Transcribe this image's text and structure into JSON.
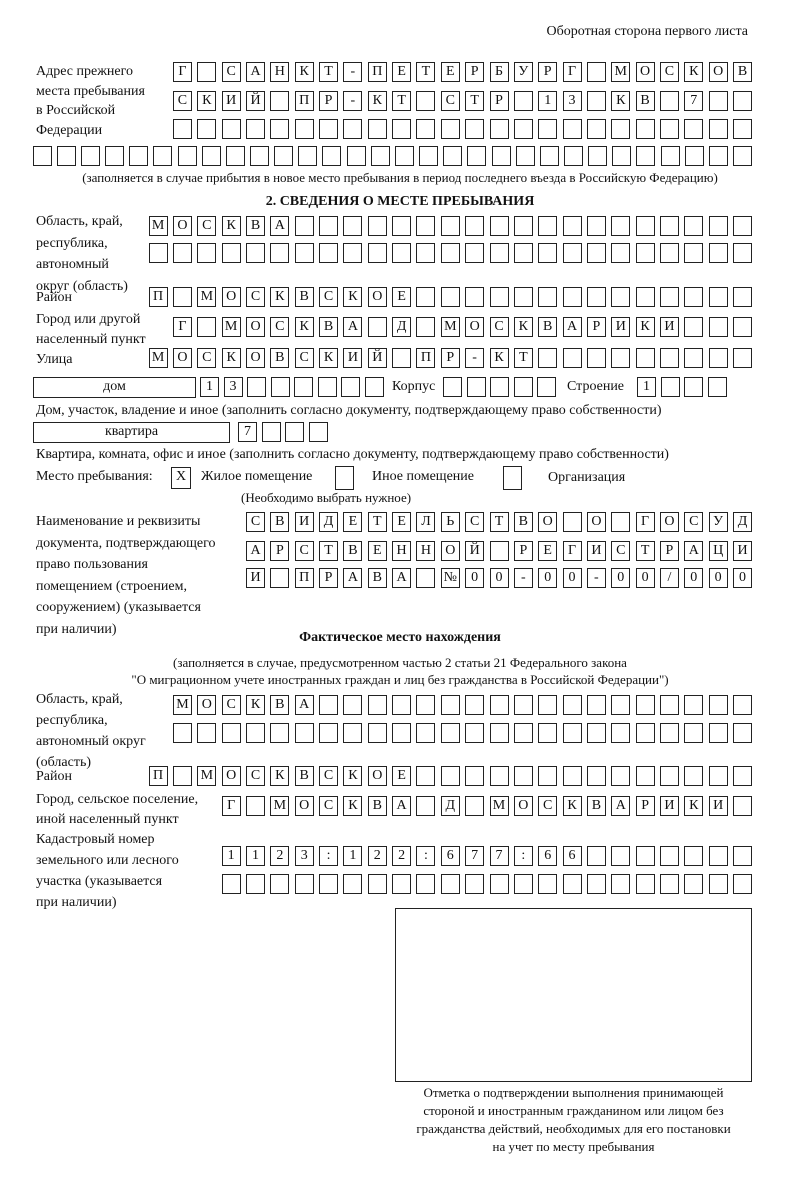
{
  "header": "Оборотная сторона первого листа",
  "prev_address": {
    "label": [
      "Адрес прежнего",
      "места пребывания",
      "в Российской",
      "Федерации"
    ],
    "rows": [
      [
        "Г",
        "",
        "С",
        "А",
        "Н",
        "К",
        "Т",
        "-",
        "П",
        "Е",
        "Т",
        "Е",
        "Р",
        "Б",
        "У",
        "Р",
        "Г",
        "",
        "М",
        "О",
        "С",
        "К",
        "О",
        "В"
      ],
      [
        "С",
        "К",
        "И",
        "Й",
        "",
        "П",
        "Р",
        "-",
        "К",
        "Т",
        "",
        "С",
        "Т",
        "Р",
        "",
        "1",
        "3",
        "",
        "К",
        "В",
        "",
        "7",
        "",
        ""
      ],
      [
        "",
        "",
        "",
        "",
        "",
        "",
        "",
        "",
        "",
        "",
        "",
        "",
        "",
        "",
        "",
        "",
        "",
        "",
        "",
        "",
        "",
        "",
        "",
        ""
      ],
      [
        "",
        "",
        "",
        "",
        "",
        "",
        "",
        "",
        "",
        "",
        "",
        "",
        "",
        "",
        "",
        "",
        "",
        "",
        "",
        "",
        "",
        "",
        "",
        "",
        "",
        "",
        "",
        "",
        "",
        ""
      ]
    ],
    "note": "(заполняется в случае прибытия в новое место пребывания в период последнего въезда в Российскую Федерацию)"
  },
  "section2": {
    "title": "2. СВЕДЕНИЯ О МЕСТЕ ПРЕБЫВАНИЯ",
    "region_label": [
      "Область, край,",
      "республика,",
      "автономный",
      "округ (область)"
    ],
    "region_rows": [
      [
        "М",
        "О",
        "С",
        "К",
        "В",
        "А",
        "",
        "",
        "",
        "",
        "",
        "",
        "",
        "",
        "",
        "",
        "",
        "",
        "",
        "",
        "",
        "",
        "",
        "",
        ""
      ],
      [
        "",
        "",
        "",
        "",
        "",
        "",
        "",
        "",
        "",
        "",
        "",
        "",
        "",
        "",
        "",
        "",
        "",
        "",
        "",
        "",
        "",
        "",
        "",
        "",
        ""
      ]
    ],
    "district_label": "Район",
    "district_row": [
      "П",
      "",
      "М",
      "О",
      "С",
      "К",
      "В",
      "С",
      "К",
      "О",
      "Е",
      "",
      "",
      "",
      "",
      "",
      "",
      "",
      "",
      "",
      "",
      "",
      "",
      "",
      ""
    ],
    "city_label": [
      "Город или другой",
      "населенный пункт"
    ],
    "city_row": [
      "Г",
      "",
      "М",
      "О",
      "С",
      "К",
      "В",
      "А",
      "",
      "Д",
      "",
      "М",
      "О",
      "С",
      "К",
      "В",
      "А",
      "Р",
      "И",
      "К",
      "И",
      "",
      "",
      ""
    ],
    "street_label": "Улица",
    "street_row": [
      "М",
      "О",
      "С",
      "К",
      "О",
      "В",
      "С",
      "К",
      "И",
      "Й",
      "",
      "П",
      "Р",
      "-",
      "К",
      "Т",
      "",
      "",
      "",
      "",
      "",
      "",
      "",
      "",
      ""
    ],
    "house_type": "дом",
    "house_cells": [
      "1",
      "3",
      "",
      "",
      "",
      "",
      "",
      ""
    ],
    "corpus_label": "Корпус",
    "corpus_cells": [
      "",
      "",
      "",
      "",
      ""
    ],
    "building_label": "Строение",
    "building_cells": [
      "1",
      "",
      "",
      ""
    ],
    "house_note": "Дом, участок, владение и иное (заполнить согласно документу, подтверждающему право собственности)",
    "apt_type": "квартира",
    "apt_cells": [
      "7",
      "",
      "",
      ""
    ],
    "apt_note": "Квартира, комната, офис и иное (заполнить согласно документу, подтверждающему право собственности)",
    "stay_label": "Место пребывания:",
    "stay_options": [
      {
        "mark": "X",
        "label": "Жилое помещение"
      },
      {
        "mark": "",
        "label": "Иное помещение"
      },
      {
        "mark": "",
        "label": "Организация"
      }
    ],
    "stay_note": "(Необходимо выбрать нужное)",
    "doc_label": [
      "Наименование и реквизиты",
      "документа, подтверждающего",
      "право пользования",
      "помещением (строением,",
      "сооружением) (указывается",
      "при наличии)"
    ],
    "doc_rows": [
      [
        "С",
        "В",
        "И",
        "Д",
        "Е",
        "Т",
        "Е",
        "Л",
        "Ь",
        "С",
        "Т",
        "В",
        "О",
        "",
        "О",
        "",
        "Г",
        "О",
        "С",
        "У",
        "Д"
      ],
      [
        "А",
        "Р",
        "С",
        "Т",
        "В",
        "Е",
        "Н",
        "Н",
        "О",
        "Й",
        "",
        "Р",
        "Е",
        "Г",
        "И",
        "С",
        "Т",
        "Р",
        "А",
        "Ц",
        "И"
      ],
      [
        "И",
        "",
        "П",
        "Р",
        "А",
        "В",
        "А",
        "",
        "№",
        "0",
        "0",
        "-",
        "0",
        "0",
        "-",
        "0",
        "0",
        "/",
        "0",
        "0",
        "0"
      ]
    ]
  },
  "actual": {
    "title": "Фактическое место нахождения",
    "note": [
      "(заполняется в случае, предусмотренном частью 2 статьи 21 Федерального закона",
      "\"О миграционном учете иностранных граждан и лиц без гражданства в Российской Федерации\")"
    ],
    "region_label": [
      "Область, край,",
      "республика,",
      "автономный округ",
      "(область)"
    ],
    "region_rows": [
      [
        "М",
        "О",
        "С",
        "К",
        "В",
        "А",
        "",
        "",
        "",
        "",
        "",
        "",
        "",
        "",
        "",
        "",
        "",
        "",
        "",
        "",
        "",
        "",
        "",
        ""
      ],
      [
        "",
        "",
        "",
        "",
        "",
        "",
        "",
        "",
        "",
        "",
        "",
        "",
        "",
        "",
        "",
        "",
        "",
        "",
        "",
        "",
        "",
        "",
        "",
        ""
      ]
    ],
    "district_label": "Район",
    "district_row": [
      "П",
      "",
      "М",
      "О",
      "С",
      "К",
      "В",
      "С",
      "К",
      "О",
      "Е",
      "",
      "",
      "",
      "",
      "",
      "",
      "",
      "",
      "",
      "",
      "",
      "",
      "",
      ""
    ],
    "city_label": [
      "Город, сельское поселение,",
      "иной населенный пункт"
    ],
    "city_row": [
      "Г",
      "",
      "М",
      "О",
      "С",
      "К",
      "В",
      "А",
      "",
      "Д",
      "",
      "М",
      "О",
      "С",
      "К",
      "В",
      "А",
      "Р",
      "И",
      "К",
      "И",
      ""
    ],
    "cadastre_label": [
      "Кадастровый номер",
      "земельного или лесного",
      "участка (указывается",
      "при наличии)"
    ],
    "cadastre_rows": [
      [
        "1",
        "1",
        "2",
        "3",
        ":",
        "1",
        "2",
        "2",
        ":",
        "6",
        "7",
        "7",
        ":",
        "6",
        "6",
        "",
        "",
        "",
        "",
        "",
        "",
        ""
      ],
      [
        "",
        "",
        "",
        "",
        "",
        "",
        "",
        "",
        "",
        "",
        "",
        "",
        "",
        "",
        "",
        "",
        "",
        "",
        "",
        "",
        "",
        ""
      ]
    ]
  },
  "stamp_caption": [
    "Отметка о подтверждении выполнения принимающей",
    "стороной и иностранным гражданином или лицом без",
    "гражданства действий, необходимых для его постановки",
    "на учет по месту пребывания"
  ]
}
